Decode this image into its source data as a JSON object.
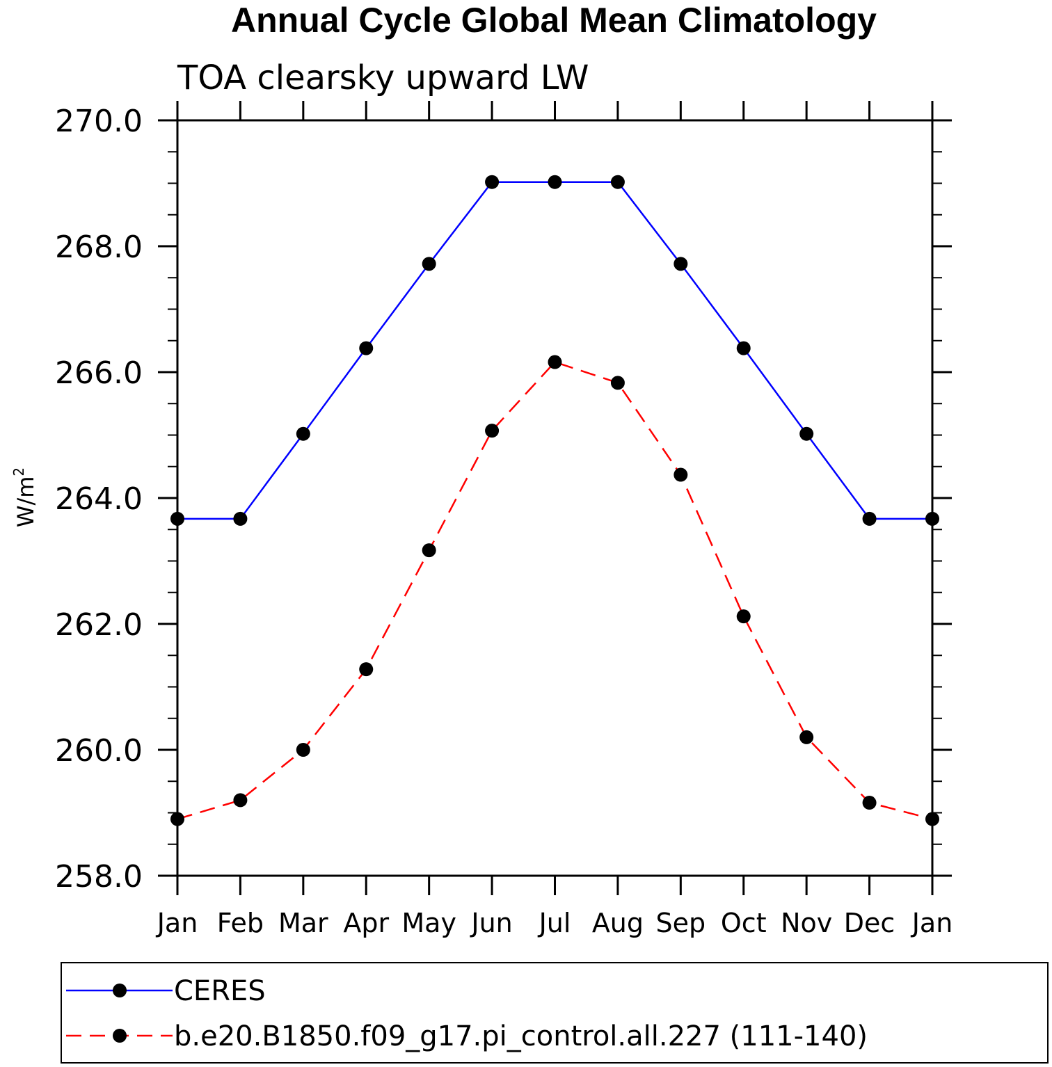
{
  "chart_data": {
    "type": "line",
    "title": "Annual Cycle Global Mean Climatology",
    "subtitle": "TOA clearsky upward LW",
    "xlabel": "",
    "ylabel": "W/m",
    "ylabel_superscript": "2",
    "categories": [
      "Jan",
      "Feb",
      "Mar",
      "Apr",
      "May",
      "Jun",
      "Jul",
      "Aug",
      "Sep",
      "Oct",
      "Nov",
      "Dec",
      "Jan"
    ],
    "ylim": [
      258.0,
      270.0
    ],
    "yticks": [
      258.0,
      260.0,
      262.0,
      264.0,
      266.0,
      268.0,
      270.0
    ],
    "ytick_labels": [
      "258.0",
      "260.0",
      "262.0",
      "264.0",
      "266.0",
      "268.0",
      "270.0"
    ],
    "series": [
      {
        "name": "CERES",
        "color": "#0000ff",
        "dash": "solid",
        "values": [
          263.67,
          263.67,
          265.02,
          266.38,
          267.72,
          269.02,
          269.02,
          269.02,
          267.72,
          266.38,
          265.02,
          263.67,
          263.67
        ]
      },
      {
        "name": "b.e20.B1850.f09_g17.pi_control.all.227 (111-140)",
        "color": "#ff0000",
        "dash": "dashed",
        "values": [
          258.9,
          259.2,
          260.0,
          261.28,
          263.17,
          265.07,
          266.16,
          265.83,
          264.37,
          262.12,
          260.2,
          259.16,
          258.9
        ]
      }
    ],
    "marker": "filled-circle",
    "legend_position": "bottom"
  }
}
